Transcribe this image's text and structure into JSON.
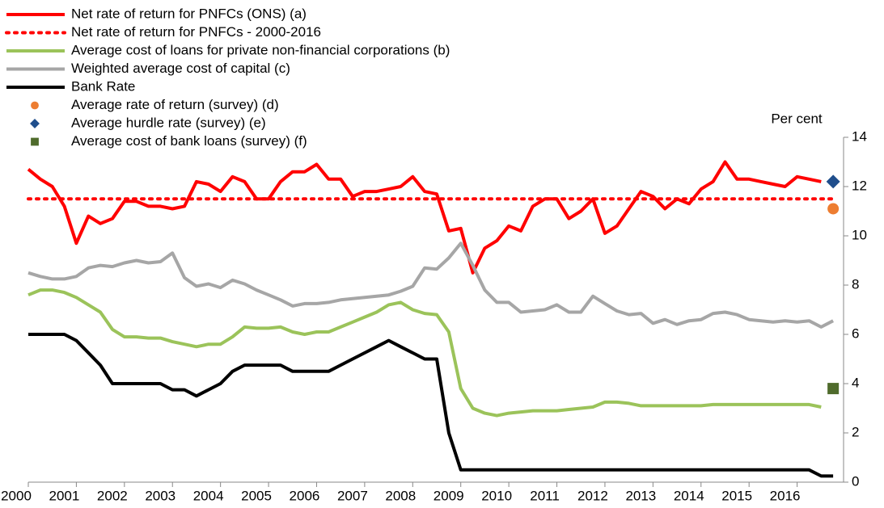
{
  "chart_data": {
    "type": "line",
    "y_axis_label": "Per cent",
    "x": [
      2000,
      2000.25,
      2000.5,
      2000.75,
      2001,
      2001.25,
      2001.5,
      2001.75,
      2002,
      2002.25,
      2002.5,
      2002.75,
      2003,
      2003.25,
      2003.5,
      2003.75,
      2004,
      2004.25,
      2004.5,
      2004.75,
      2005,
      2005.25,
      2005.5,
      2005.75,
      2006,
      2006.25,
      2006.5,
      2006.75,
      2007,
      2007.25,
      2007.5,
      2007.75,
      2008,
      2008.25,
      2008.5,
      2008.75,
      2009,
      2009.25,
      2009.5,
      2009.75,
      2010,
      2010.25,
      2010.5,
      2010.75,
      2011,
      2011.25,
      2011.5,
      2011.75,
      2012,
      2012.25,
      2012.5,
      2012.75,
      2013,
      2013.25,
      2013.5,
      2013.75,
      2014,
      2014.25,
      2014.5,
      2014.75,
      2015,
      2015.25,
      2015.5,
      2015.75,
      2016,
      2016.25,
      2016.5,
      2016.75
    ],
    "series": [
      {
        "name": "Net rate of return for PNFCs (ONS) (a)",
        "color": "#ff0000",
        "style": "solid",
        "values": [
          12.7,
          12.3,
          12.0,
          11.2,
          9.7,
          10.8,
          10.5,
          10.7,
          11.4,
          11.4,
          11.2,
          11.2,
          11.1,
          11.2,
          12.2,
          12.1,
          11.8,
          12.4,
          12.2,
          11.5,
          11.5,
          12.2,
          12.6,
          12.6,
          12.9,
          12.3,
          12.3,
          11.6,
          11.8,
          11.8,
          11.9,
          12.0,
          12.4,
          11.8,
          11.7,
          10.2,
          10.3,
          8.5,
          9.5,
          9.8,
          10.4,
          10.2,
          11.2,
          11.5,
          11.5,
          10.7,
          11.0,
          11.5,
          10.1,
          10.4,
          11.1,
          11.8,
          11.6,
          11.1,
          11.5,
          11.3,
          11.9,
          12.2,
          13.0,
          12.3,
          12.3,
          12.2,
          12.1,
          12.0,
          12.4,
          12.3,
          12.2,
          null
        ]
      },
      {
        "name": "Net rate of return for PNFCs - 2000-2016",
        "color": "#ff0000",
        "style": "dotted",
        "values": [
          11.5,
          11.5,
          11.5,
          11.5,
          11.5,
          11.5,
          11.5,
          11.5,
          11.5,
          11.5,
          11.5,
          11.5,
          11.5,
          11.5,
          11.5,
          11.5,
          11.5,
          11.5,
          11.5,
          11.5,
          11.5,
          11.5,
          11.5,
          11.5,
          11.5,
          11.5,
          11.5,
          11.5,
          11.5,
          11.5,
          11.5,
          11.5,
          11.5,
          11.5,
          11.5,
          11.5,
          11.5,
          11.5,
          11.5,
          11.5,
          11.5,
          11.5,
          11.5,
          11.5,
          11.5,
          11.5,
          11.5,
          11.5,
          11.5,
          11.5,
          11.5,
          11.5,
          11.5,
          11.5,
          11.5,
          11.5,
          11.5,
          11.5,
          11.5,
          11.5,
          11.5,
          11.5,
          11.5,
          11.5,
          11.5,
          11.5,
          11.5,
          11.5
        ]
      },
      {
        "name": "Average cost of loans for private non-financial corporations (b)",
        "color": "#9bc35a",
        "style": "solid",
        "values": [
          7.6,
          7.8,
          7.8,
          7.7,
          7.5,
          7.2,
          6.9,
          6.2,
          5.9,
          5.9,
          5.85,
          5.85,
          5.7,
          5.6,
          5.5,
          5.6,
          5.6,
          5.9,
          6.3,
          6.25,
          6.25,
          6.3,
          6.1,
          6.0,
          6.1,
          6.1,
          6.3,
          6.5,
          6.7,
          6.9,
          7.2,
          7.3,
          7.0,
          6.85,
          6.8,
          6.1,
          3.8,
          3.0,
          2.8,
          2.7,
          2.8,
          2.85,
          2.9,
          2.9,
          2.9,
          2.95,
          3.0,
          3.05,
          3.25,
          3.25,
          3.2,
          3.1,
          3.1,
          3.1,
          3.1,
          3.1,
          3.1,
          3.15,
          3.15,
          3.15,
          3.15,
          3.15,
          3.15,
          3.15,
          3.15,
          3.15,
          3.05,
          null
        ]
      },
      {
        "name": "Weighted average cost of capital (c)",
        "color": "#a6a6a6",
        "style": "solid",
        "values": [
          8.5,
          8.35,
          8.25,
          8.25,
          8.35,
          8.7,
          8.8,
          8.75,
          8.9,
          9.0,
          8.9,
          8.95,
          9.3,
          8.3,
          7.95,
          8.05,
          7.9,
          8.2,
          8.05,
          7.8,
          7.6,
          7.4,
          7.15,
          7.25,
          7.25,
          7.3,
          7.4,
          7.45,
          7.5,
          7.55,
          7.6,
          7.75,
          7.95,
          8.7,
          8.65,
          9.1,
          9.7,
          8.8,
          7.8,
          7.3,
          7.3,
          6.9,
          6.95,
          7.0,
          7.2,
          6.9,
          6.9,
          7.55,
          7.25,
          6.95,
          6.8,
          6.85,
          6.45,
          6.6,
          6.4,
          6.55,
          6.6,
          6.85,
          6.9,
          6.8,
          6.6,
          6.55,
          6.5,
          6.55,
          6.5,
          6.55,
          6.3,
          6.55
        ]
      },
      {
        "name": "Bank Rate",
        "color": "#000000",
        "style": "solid",
        "values": [
          6,
          6,
          6,
          6,
          5.75,
          5.25,
          4.75,
          4,
          4,
          4,
          4,
          4,
          3.75,
          3.75,
          3.5,
          3.75,
          4,
          4.5,
          4.75,
          4.75,
          4.75,
          4.75,
          4.5,
          4.5,
          4.5,
          4.5,
          4.75,
          5,
          5.25,
          5.5,
          5.75,
          5.5,
          5.25,
          5,
          5,
          2,
          0.5,
          0.5,
          0.5,
          0.5,
          0.5,
          0.5,
          0.5,
          0.5,
          0.5,
          0.5,
          0.5,
          0.5,
          0.5,
          0.5,
          0.5,
          0.5,
          0.5,
          0.5,
          0.5,
          0.5,
          0.5,
          0.5,
          0.5,
          0.5,
          0.5,
          0.5,
          0.5,
          0.5,
          0.5,
          0.5,
          0.25,
          0.25
        ]
      },
      {
        "name": "Average rate of return (survey) (d)",
        "color": "#ed7d31",
        "marker": "circle",
        "x": [
          2016.75
        ],
        "values": [
          11.1
        ]
      },
      {
        "name": "Average hurdle rate (survey) (e)",
        "color": "#1f4e8c",
        "marker": "diamond",
        "x": [
          2016.75
        ],
        "values": [
          12.2
        ]
      },
      {
        "name": "Average cost of bank loans (survey) (f)",
        "color": "#4f6b2c",
        "marker": "square",
        "x": [
          2016.75
        ],
        "values": [
          3.8
        ]
      }
    ],
    "xlim": [
      2000,
      2017
    ],
    "xticks": [
      2000,
      2001,
      2002,
      2003,
      2004,
      2005,
      2006,
      2007,
      2008,
      2009,
      2010,
      2011,
      2012,
      2013,
      2014,
      2015,
      2016
    ],
    "ylim": [
      0,
      14
    ],
    "yticks": [
      0,
      2,
      4,
      6,
      8,
      10,
      12,
      14
    ],
    "y_axis_side": "right",
    "grid": false
  }
}
